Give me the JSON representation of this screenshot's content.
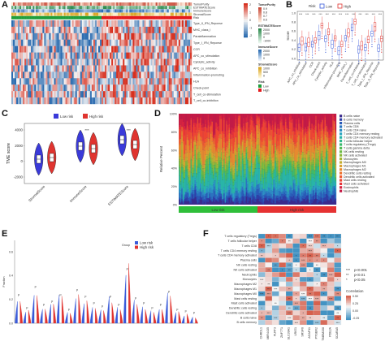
{
  "panels": {
    "A": {
      "label": "A",
      "annotation_rows": [
        "TumorPurity",
        "ESTIMATEScore",
        "ImmuneScore",
        "StromalScore",
        "Risk"
      ],
      "heatmap_rows": [
        "Type_II_IFN_Reponse",
        "MHC_class_I",
        "Parainflammation",
        "Type_I_IFN_Reponse",
        "CCR",
        "APC_co_stimulation",
        "Cytolytic_activity",
        "APC_co_inhibition",
        "Inflammation-promoting",
        "HLA",
        "Check-point",
        "T_cell_co-stimulation",
        "T_cell_co-inhibition"
      ],
      "legend": [
        {
          "title": "TumorPurity",
          "ticks": [
            "0.9",
            "0.8",
            "0.7",
            "0.6"
          ]
        },
        {
          "title": "ESTIMATEScore",
          "ticks": [
            "2000",
            "1000",
            "0",
            "-1000"
          ]
        },
        {
          "title": "ImmuneScore",
          "ticks": [
            "2000",
            "1000",
            "0"
          ]
        },
        {
          "title": "StromalScore",
          "ticks": [
            "1000",
            "500",
            "0"
          ]
        },
        {
          "title": "Risk",
          "ticks": [
            "Low",
            "High"
          ]
        }
      ],
      "scale_ticks": [
        "2",
        "1",
        "0",
        "-1",
        "-2"
      ],
      "colors": {
        "high": "#d7301f",
        "low": "#2b6cb0",
        "mid": "#f5f5f5",
        "risk_low": "#1e9e3a",
        "risk_high": "#e41a1c"
      }
    },
    "B": {
      "label": "B",
      "legend_title": "Risk",
      "legend_items": [
        "Low",
        "High"
      ],
      "ylabel": "Score",
      "categories": [
        "APC_co_inhibition",
        "APC_co_stimulation",
        "CCR",
        "Check-point",
        "Cytolytic_activity",
        "HLA",
        "Inflammation-promoting",
        "MHC_class_I",
        "Parainflammation",
        "T_cell_co-inhibition",
        "T_cell_co-stimulation",
        "Type_I_IFN_Reponse",
        "Type_II_IFN_Reponse"
      ],
      "sig": [
        "***",
        "***",
        "***",
        "***",
        "***",
        "***",
        "***",
        "***",
        "***",
        "***",
        "***",
        "***",
        "***"
      ],
      "y_ticks": [
        "1.0",
        "0.8",
        "0.6",
        "0.4",
        "0.2",
        "0.0"
      ]
    },
    "C": {
      "label": "C",
      "legend_items": [
        "Low risk",
        "High risk"
      ],
      "ylabel": "TME score",
      "categories": [
        "StromalScore",
        "ImmuneScore",
        "ESTIMATEScore"
      ],
      "sig": [
        "",
        "***",
        "***"
      ],
      "y_ticks": [
        "4000",
        "2000",
        "0",
        "-2000"
      ]
    },
    "D": {
      "label": "D",
      "ylabel": "Relative Percent",
      "y_ticks": [
        "100%",
        "80%",
        "60%",
        "40%",
        "20%",
        "0%"
      ],
      "group_labels": [
        "Low risk",
        "High risk"
      ],
      "legend": [
        "B cells naive",
        "B cells memory",
        "Plasma cells",
        "T cells CD8",
        "T cells CD4 naive",
        "T cells CD4 memory resting",
        "T cells CD4 memory activated",
        "T cells follicular helper",
        "T cells regulatory (Tregs)",
        "T cells gamma delta",
        "NK cells resting",
        "NK cells activated",
        "Monocytes",
        "Macrophages M0",
        "Macrophages M1",
        "Macrophages M2",
        "Dendritic cells resting",
        "Dendritic cells activated",
        "Mast cells resting",
        "Mast cells activated",
        "Eosinophils",
        "Neutrophils"
      ],
      "legend_colors": [
        "#3a2a8c",
        "#2e3fa8",
        "#2a5bb8",
        "#2b74c0",
        "#2c8ec4",
        "#2ba5c0",
        "#29b5a8",
        "#2fb88e",
        "#3cba6e",
        "#53bb55",
        "#6cbb44",
        "#89b93a",
        "#a6b534",
        "#c2ae31",
        "#d9a030",
        "#e68a2f",
        "#ec722f",
        "#ef5c30",
        "#ee4533",
        "#e63239",
        "#d8233f",
        "#c51a45"
      ]
    },
    "E": {
      "label": "E",
      "legend_title": "Group",
      "legend_items": [
        "Low risk",
        "High risk"
      ],
      "ylabel": "Fraction",
      "y_ticks": [
        "0.6",
        "0.4",
        "0.2",
        "0.0"
      ]
    },
    "F": {
      "label": "F",
      "rows": [
        "T cells regulatory (Tregs)",
        "T cells follicular helper",
        "T cells CD8",
        "T cells CD4 memory resting",
        "T cells CD4 memory activated",
        "Plasma cells",
        "NK cells resting",
        "NK cells activated",
        "Neutrophils",
        "Monocytes",
        "Macrophages M2",
        "Macrophages M1",
        "Macrophages M0",
        "Mast cells resting",
        "Mast cells activated",
        "Dendritic cells resting",
        "Dendritic cells activated",
        "B cells naive",
        "B cells memory"
      ],
      "cols": [
        "CHRDL1",
        "MIR4435",
        "FLRT3",
        "ZNF771",
        "SLC39A1",
        "LRIG1",
        "SRSF6",
        "AGAP11",
        "PTGER2",
        "TMEM158",
        "PDE2A",
        "SCARA5"
      ],
      "pvalue_legend": [
        "p<0.001",
        "p<0.01",
        "p<0.05"
      ],
      "pvalue_marks": [
        "***",
        "**",
        "*"
      ],
      "corr_title": "Correlation",
      "corr_ticks": [
        "0.50",
        "0.25",
        "0.00",
        "-0.25"
      ]
    }
  }
}
